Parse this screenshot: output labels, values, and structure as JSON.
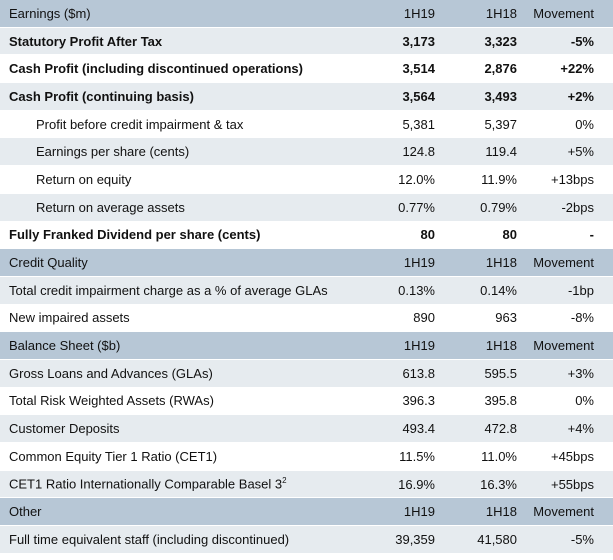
{
  "sections": [
    {
      "header": {
        "label": "Earnings ($m)",
        "col1": "1H19",
        "col2": "1H18",
        "col3": "Movement"
      },
      "rows": [
        {
          "label": "Statutory Profit After Tax",
          "v1": "3,173",
          "v2": "3,323",
          "v3": "-5%",
          "bold": true,
          "indent": false
        },
        {
          "label": "Cash Profit  (including discontinued operations)",
          "v1": "3,514",
          "v2": "2,876",
          "v3": "+22%",
          "bold": true,
          "indent": false
        },
        {
          "label": "Cash Profit (continuing basis)",
          "v1": "3,564",
          "v2": "3,493",
          "v3": "+2%",
          "bold": true,
          "indent": false
        },
        {
          "label": "Profit before credit impairment & tax",
          "v1": "5,381",
          "v2": "5,397",
          "v3": "0%",
          "bold": false,
          "indent": true
        },
        {
          "label": "Earnings per share (cents)",
          "v1": "124.8",
          "v2": "119.4",
          "v3": "+5%",
          "bold": false,
          "indent": true
        },
        {
          "label": "Return on equity",
          "v1": "12.0%",
          "v2": "11.9%",
          "v3": "+13bps",
          "bold": false,
          "indent": true
        },
        {
          "label": "Return on average assets",
          "v1": "0.77%",
          "v2": "0.79%",
          "v3": "-2bps",
          "bold": false,
          "indent": true
        },
        {
          "label": "Fully Franked Dividend per share (cents)",
          "v1": "80",
          "v2": "80",
          "v3": "-",
          "bold": true,
          "indent": false
        }
      ]
    },
    {
      "header": {
        "label": "Credit Quality",
        "col1": "1H19",
        "col2": "1H18",
        "col3": "Movement"
      },
      "rows": [
        {
          "label": "Total credit impairment charge as a % of average GLAs",
          "v1": "0.13%",
          "v2": "0.14%",
          "v3": "-1bp",
          "bold": false,
          "indent": false
        },
        {
          "label": "New impaired assets",
          "v1": "890",
          "v2": "963",
          "v3": "-8%",
          "bold": false,
          "indent": false
        }
      ]
    },
    {
      "header": {
        "label": "Balance Sheet ($b)",
        "col1": "1H19",
        "col2": "1H18",
        "col3": "Movement"
      },
      "rows": [
        {
          "label": "Gross Loans and Advances (GLAs)",
          "v1": "613.8",
          "v2": "595.5",
          "v3": "+3%",
          "bold": false,
          "indent": false
        },
        {
          "label": "Total Risk Weighted Assets (RWAs)",
          "v1": "396.3",
          "v2": "395.8",
          "v3": "0%",
          "bold": false,
          "indent": false
        },
        {
          "label": "Customer Deposits",
          "v1": "493.4",
          "v2": "472.8",
          "v3": "+4%",
          "bold": false,
          "indent": false
        },
        {
          "label": "Common Equity Tier 1 Ratio (CET1)",
          "v1": "11.5%",
          "v2": "11.0%",
          "v3": "+45bps",
          "bold": false,
          "indent": false
        },
        {
          "label": "CET1 Ratio Internationally Comparable Basel 3",
          "sup": "2",
          "v1": "16.9%",
          "v2": "16.3%",
          "v3": "+55bps",
          "bold": false,
          "indent": false
        }
      ]
    },
    {
      "header": {
        "label": "Other",
        "col1": "1H19",
        "col2": "1H18",
        "col3": "Movement"
      },
      "rows": [
        {
          "label": "Full time equivalent staff (including discontinued)",
          "v1": "39,359",
          "v2": "41,580",
          "v3": "-5%",
          "bold": false,
          "indent": false
        }
      ]
    }
  ]
}
